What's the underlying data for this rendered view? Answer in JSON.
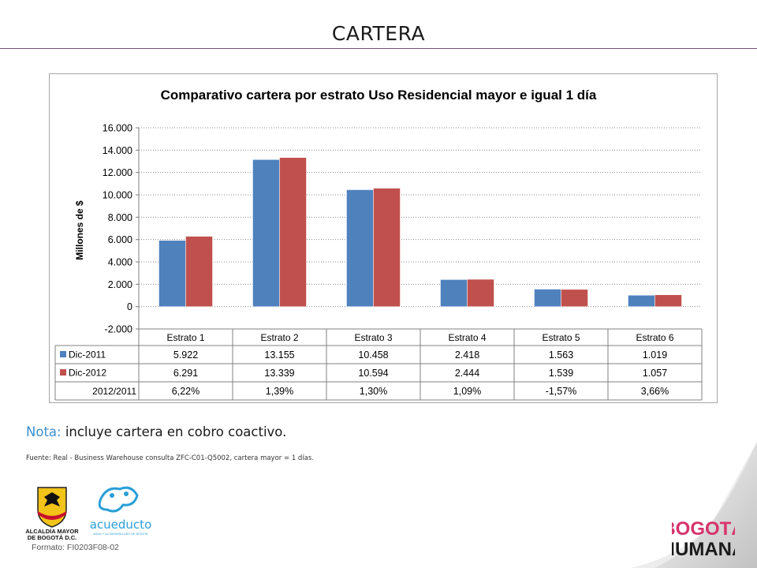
{
  "slide": {
    "title": "CARTERA",
    "note_label": "Nota:",
    "note_text": " incluye cartera en cobro coactivo.",
    "source": "Fuente: Real - Business Warehouse consulta ZFC-C01-Q5002, cartera mayor  = 1 días.",
    "formato": "Formato: FI0203F08-02"
  },
  "logos": {
    "alcaldia_line1": "ALCALDÍA MAYOR",
    "alcaldia_line2": "DE BOGOTÁ D.C.",
    "acueducto_name": "acueducto",
    "acueducto_sub": "AGUA Y ALCANTARILLADO DE BOGOTÁ",
    "bogota_line1": "BOGOTÁ",
    "bogota_line2": "HUMANA"
  },
  "colors": {
    "dic2011": "#4f81bd",
    "dic2012": "#c0504d",
    "accent": "#3a8fd0",
    "rule": "#7b4f7b"
  },
  "chart_data": {
    "type": "bar",
    "title": "Comparativo cartera por estrato Uso Residencial mayor e igual 1 día",
    "ylabel": "Millones de $",
    "ylim": [
      -2000,
      16000
    ],
    "yticks": [
      -2000,
      0,
      2000,
      4000,
      6000,
      8000,
      10000,
      12000,
      14000,
      16000
    ],
    "ytick_labels": [
      "-2.000",
      "0",
      "2.000",
      "4.000",
      "6.000",
      "8.000",
      "10.000",
      "12.000",
      "14.000",
      "16.000"
    ],
    "grid": "horizontal dotted",
    "categories": [
      "Estrato 1",
      "Estrato 2",
      "Estrato 3",
      "Estrato 4",
      "Estrato 5",
      "Estrato 6"
    ],
    "series": [
      {
        "name": "Dic-2011",
        "values": [
          5922,
          13155,
          10458,
          2418,
          1563,
          1019
        ],
        "labels": [
          "5.922",
          "13.155",
          "10.458",
          "2.418",
          "1.563",
          "1.019"
        ]
      },
      {
        "name": "Dic-2012",
        "values": [
          6291,
          13339,
          10594,
          2444,
          1539,
          1057
        ],
        "labels": [
          "6.291",
          "13.339",
          "10.594",
          "2.444",
          "1.539",
          "1.057"
        ]
      }
    ],
    "data_table": {
      "extra_row_label": "2012/2011",
      "extra_row_values": [
        "6,22%",
        "1,39%",
        "1,30%",
        "1,09%",
        "-1,57%",
        "3,66%"
      ]
    }
  }
}
